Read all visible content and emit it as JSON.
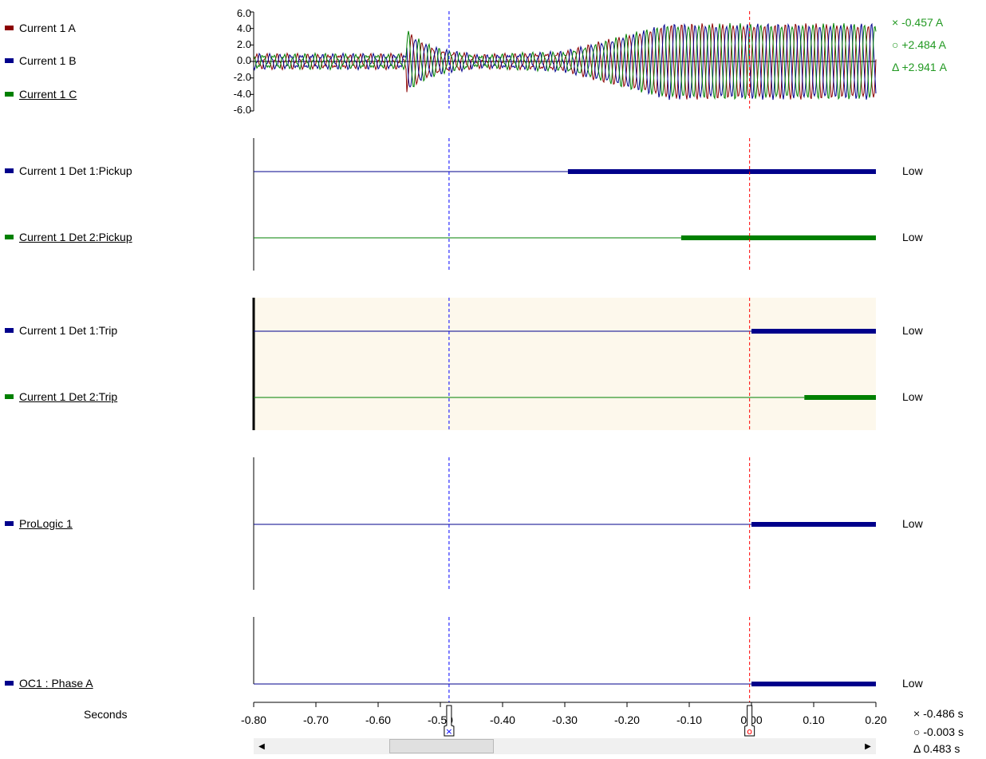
{
  "colors": {
    "red": "#8b0000",
    "blue": "#00008b",
    "green": "#008000",
    "cursor_x": "#0000ff",
    "cursor_o": "#ff0000",
    "highlight_bg": "#fdf8ec"
  },
  "analog": {
    "legend": [
      {
        "label": "Current 1 A",
        "color": "#8b0000",
        "underlined": false
      },
      {
        "label": "Current 1 B",
        "color": "#00008b",
        "underlined": false
      },
      {
        "label": "Current 1 C",
        "color": "#008000",
        "underlined": true
      }
    ],
    "yticks": [
      "6.0",
      "4.0",
      "2.0",
      "0.0",
      "-2.0",
      "-4.0",
      "-6.0"
    ],
    "readouts": [
      {
        "symbol": "×",
        "value": "-0.457  A"
      },
      {
        "symbol": "○",
        "value": "+2.484  A"
      },
      {
        "symbol": "Δ",
        "value": "+2.941  A"
      }
    ]
  },
  "digital": [
    {
      "label": "Current 1 Det 1:Pickup",
      "color": "#00008b",
      "underlined": false,
      "state": "Low",
      "high_from": -0.295
    },
    {
      "label": "Current 1 Det 2:Pickup",
      "color": "#008000",
      "underlined": true,
      "state": "Low",
      "high_from": -0.113
    },
    {
      "label": "Current 1 Det 1:Trip",
      "color": "#00008b",
      "underlined": false,
      "state": "Low",
      "high_from": 0.0
    },
    {
      "label": "Current 1 Det 2:Trip",
      "color": "#008000",
      "underlined": true,
      "state": "Low",
      "high_from": 0.085
    },
    {
      "label": "ProLogic 1",
      "color": "#00008b",
      "underlined": true,
      "state": "Low",
      "high_from": 0.0
    },
    {
      "label": "OC1 : Phase A",
      "color": "#00008b",
      "underlined": true,
      "state": "Low",
      "high_from": 0.0
    }
  ],
  "time_axis": {
    "label": "Seconds",
    "ticks": [
      "-0.80",
      "-0.70",
      "-0.60",
      "-0.50",
      "-0.40",
      "-0.30",
      "-0.20",
      "-0.10",
      "0.00",
      "0.10",
      "0.20"
    ],
    "range": [
      -0.8,
      0.2
    ]
  },
  "cursors": {
    "x_time": -0.486,
    "o_time": -0.003,
    "readouts": [
      {
        "symbol": "×",
        "value": "-0.486 s"
      },
      {
        "symbol": "○",
        "value": "-0.003 s"
      },
      {
        "symbol": "Δ",
        "value": "0.483 s"
      }
    ]
  },
  "scrollbar": {
    "left_arrow": "◀",
    "right_arrow": "▶"
  }
}
